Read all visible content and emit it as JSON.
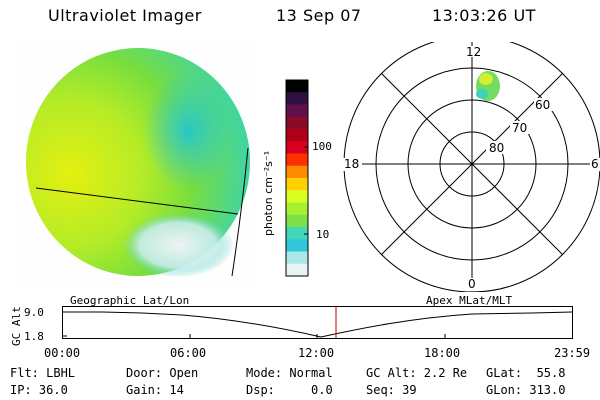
{
  "header": {
    "instrument": "Ultraviolet Imager",
    "date": "13 Sep 07",
    "time": "13:03:26 UT"
  },
  "colorbar": {
    "label": "photon cm⁻²s⁻¹",
    "ticks": [
      "100",
      "10"
    ],
    "colors": [
      "#000000",
      "#301040",
      "#60104a",
      "#8a0a2a",
      "#b00018",
      "#d80020",
      "#ff3000",
      "#ff8c00",
      "#ffd000",
      "#d8ff20",
      "#a8f030",
      "#7ee048",
      "#40d8b8",
      "#30c8d8",
      "#a8e8e8",
      "#e8f4f4"
    ]
  },
  "polar_plot": {
    "mlt_labels": [
      "12",
      "18",
      "6",
      "0"
    ],
    "lat_labels": [
      "60",
      "70",
      "80"
    ]
  },
  "timeline": {
    "ylabel": "GC Alt",
    "left_title": "Geographic Lat/Lon",
    "right_title": "Apex MLat/MLT",
    "y_ticks": [
      "9.0",
      "1.8"
    ],
    "x_ticks": [
      "00:00",
      "06:00",
      "12:00",
      "18:00",
      "23:59"
    ]
  },
  "status": {
    "flt": "Flt: LBHL",
    "ip": "IP: 36.0",
    "door": "Door: Open",
    "gain": "Gain: 14",
    "mode": "Mode: Normal",
    "dsp": "Dsp:     0.0",
    "gc_alt": "GC Alt: 2.2 Re",
    "seq": "Seq: 39",
    "glat": "GLat:  55.8",
    "glon": "GLon: 313.0"
  }
}
